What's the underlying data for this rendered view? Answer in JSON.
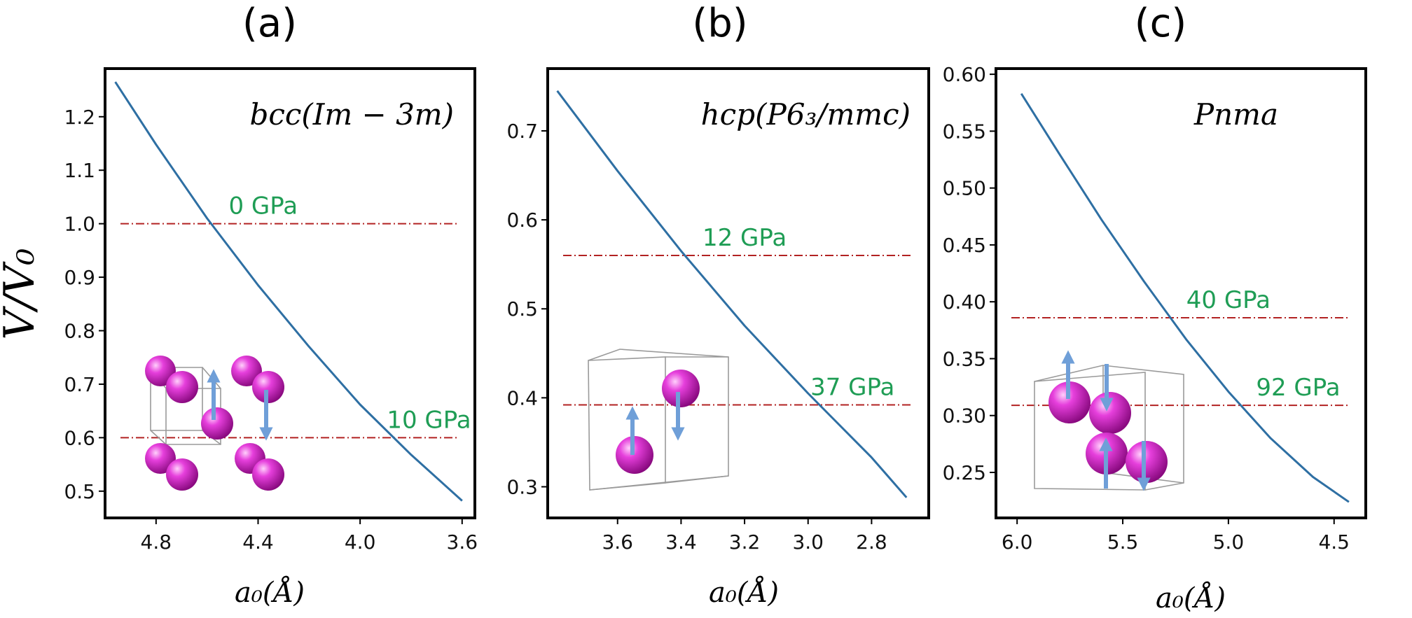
{
  "figure": {
    "ylabel": "V/V₀",
    "xlabel": "a₀(Å)"
  },
  "chart_data": [
    {
      "type": "line",
      "panel_label": "(a)",
      "phase_label": "bcc(Im − 3m)",
      "xlabel": "a₀(Å)",
      "ylabel": "V/V₀",
      "x_inverted": true,
      "xlim": [
        5.0,
        3.55
      ],
      "ylim": [
        0.45,
        1.29
      ],
      "xticks": [
        4.8,
        4.4,
        4.0,
        3.6
      ],
      "xtick_labels": [
        "4.8",
        "4.4",
        "4.0",
        "3.6"
      ],
      "yticks": [
        0.5,
        0.6,
        0.7,
        0.8,
        0.9,
        1.0,
        1.1,
        1.2
      ],
      "ytick_labels": [
        "0.5",
        "0.6",
        "0.7",
        "0.8",
        "0.9",
        "1.0",
        "1.1",
        "1.2"
      ],
      "series": [
        {
          "color": "#2e6fa3",
          "x": [
            4.96,
            4.8,
            4.6,
            4.4,
            4.2,
            4.0,
            3.8,
            3.6
          ],
          "y": [
            1.265,
            1.148,
            1.01,
            0.885,
            0.77,
            0.662,
            0.568,
            0.482
          ]
        }
      ],
      "reference_lines": [
        {
          "y": 1.0,
          "label": "0 GPa",
          "label_x": 4.38
        },
        {
          "y": 0.6,
          "label": "10 GPa",
          "label_x": 3.73
        }
      ],
      "reference_color": "#b22222",
      "label_color": "#1f9d55"
    },
    {
      "type": "line",
      "panel_label": "(b)",
      "phase_label": "hcp(P6₃/mmc)",
      "xlabel": "a₀(Å)",
      "ylabel": "V/V₀",
      "x_inverted": true,
      "xlim": [
        3.82,
        2.62
      ],
      "ylim": [
        0.265,
        0.77
      ],
      "xticks": [
        3.6,
        3.4,
        3.2,
        3.0,
        2.8
      ],
      "xtick_labels": [
        "3.6",
        "3.4",
        "3.2",
        "3.0",
        "2.8"
      ],
      "yticks": [
        0.3,
        0.4,
        0.5,
        0.6,
        0.7
      ],
      "ytick_labels": [
        "0.3",
        "0.4",
        "0.5",
        "0.6",
        "0.7"
      ],
      "series": [
        {
          "color": "#2e6fa3",
          "x": [
            3.79,
            3.6,
            3.4,
            3.2,
            3.0,
            2.8,
            2.69
          ],
          "y": [
            0.745,
            0.655,
            0.565,
            0.481,
            0.405,
            0.333,
            0.288
          ]
        }
      ],
      "reference_lines": [
        {
          "y": 0.56,
          "label": "12 GPa",
          "label_x": 3.2
        },
        {
          "y": 0.392,
          "label": "37 GPa",
          "label_x": 2.86
        }
      ],
      "reference_color": "#b22222",
      "label_color": "#1f9d55"
    },
    {
      "type": "line",
      "panel_label": "(c)",
      "phase_label": "Pnma",
      "xlabel": "a₀(Å)",
      "ylabel": "V/V₀",
      "x_inverted": true,
      "xlim": [
        6.1,
        4.35
      ],
      "ylim": [
        0.21,
        0.605
      ],
      "xticks": [
        6.0,
        5.5,
        5.0,
        4.5
      ],
      "xtick_labels": [
        "6.0",
        "5.5",
        "5.0",
        "4.5"
      ],
      "yticks": [
        0.25,
        0.3,
        0.35,
        0.4,
        0.45,
        0.5,
        0.55,
        0.6
      ],
      "ytick_labels": [
        "0.25",
        "0.30",
        "0.35",
        "0.40",
        "0.45",
        "0.50",
        "0.55",
        "0.60"
      ],
      "series": [
        {
          "color": "#2e6fa3",
          "x": [
            5.98,
            5.8,
            5.6,
            5.4,
            5.2,
            5.0,
            4.8,
            4.6,
            4.43
          ],
          "y": [
            0.583,
            0.53,
            0.472,
            0.418,
            0.367,
            0.321,
            0.28,
            0.246,
            0.224
          ]
        }
      ],
      "reference_lines": [
        {
          "y": 0.386,
          "label": "40 GPa",
          "label_x": 5.0
        },
        {
          "y": 0.309,
          "label": "92 GPa",
          "label_x": 4.67
        }
      ],
      "reference_color": "#b22222",
      "label_color": "#1f9d55"
    }
  ],
  "colors": {
    "curve": "#2e6fa3",
    "reference_line": "#b22222",
    "pressure_label": "#1f9d55",
    "atom": "#d41fc8",
    "spin_arrow": "#6f9fd8"
  }
}
